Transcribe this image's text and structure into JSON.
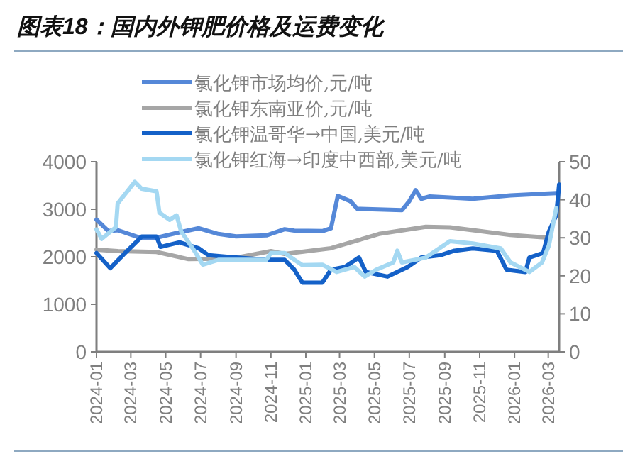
{
  "chart_data": {
    "type": "line",
    "title": "图表18：国内外钾肥价格及运费变化",
    "legend": "top",
    "grid": false,
    "line_style": "solid",
    "xlim": [
      "2024-01-01",
      "2026-03-20"
    ],
    "xticks": [
      "2024-01",
      "2024-03",
      "2024-05",
      "2024-07",
      "2024-09",
      "2024-11",
      "2025-01",
      "2025-03",
      "2025-05",
      "2025-07",
      "2025-09",
      "2025-11",
      "2026-01",
      "2026-03"
    ],
    "ylim": [
      0,
      4000
    ],
    "yticks": [
      0,
      1000,
      2000,
      3000,
      4000
    ],
    "y2lim": [
      0,
      50
    ],
    "y2ticks": [
      0,
      10,
      20,
      30,
      40,
      50
    ],
    "series": [
      {
        "name": "氯化钾市场均价,元/吨",
        "color": "#5588d8",
        "x": [
          "2024-01-01",
          "2024-01-22",
          "2024-02-07",
          "2024-03-20",
          "2024-04-15",
          "2024-05-20",
          "2024-06-28",
          "2024-08-01",
          "2024-09-01",
          "2024-10-24",
          "2024-11-25",
          "2024-12-12",
          "2025-01-30",
          "2025-02-14",
          "2025-02-26",
          "2025-03-20",
          "2025-04-01",
          "2025-06-18",
          "2025-07-01",
          "2025-07-12",
          "2025-07-22",
          "2025-08-06",
          "2025-10-20",
          "2025-12-25",
          "2026-03-15"
        ],
        "values": [
          2780,
          2540,
          2560,
          2390,
          2400,
          2500,
          2600,
          2480,
          2430,
          2450,
          2580,
          2550,
          2540,
          2600,
          3280,
          3170,
          3010,
          2980,
          3170,
          3400,
          3220,
          3270,
          3220,
          3290,
          3340
        ]
      },
      {
        "name": "氯化钾东南亚价,元/吨",
        "color": "#a6a6a6",
        "x": [
          "2024-01-01",
          "2024-02-07",
          "2024-04-15",
          "2024-06-10",
          "2024-08-01",
          "2024-09-10",
          "2024-11-01",
          "2024-11-25",
          "2025-02-14",
          "2025-05-09",
          "2025-07-30",
          "2025-09-10",
          "2025-10-20",
          "2025-12-25",
          "2026-03-02"
        ],
        "values": [
          2150,
          2120,
          2100,
          1950,
          1960,
          2000,
          2120,
          2060,
          2180,
          2480,
          2630,
          2620,
          2560,
          2460,
          2400
        ]
      },
      {
        "name": "氯化钾温哥华→中国,美元/吨",
        "color": "#1461c8",
        "axis": "y2",
        "x": [
          "2024-01-01",
          "2024-01-25",
          "2024-02-20",
          "2024-03-20",
          "2024-04-15",
          "2024-04-22",
          "2024-05-25",
          "2024-06-28",
          "2024-07-15",
          "2024-08-16",
          "2024-10-24",
          "2024-11-25",
          "2024-12-12",
          "2024-12-26",
          "2025-01-30",
          "2025-02-14",
          "2025-03-10",
          "2025-04-04",
          "2025-04-16",
          "2025-05-24",
          "2025-06-28",
          "2025-07-22",
          "2025-08-24",
          "2025-09-18",
          "2025-10-20",
          "2025-12-01",
          "2025-12-18",
          "2026-01-20",
          "2026-01-27",
          "2026-02-20",
          "2026-03-02",
          "2026-03-15",
          "2026-03-20"
        ],
        "values": [
          26,
          22,
          26,
          30.3,
          30.3,
          27.6,
          28.8,
          27.2,
          25.4,
          25,
          24.2,
          24.2,
          21.6,
          18.2,
          18.2,
          21.6,
          22.3,
          24.8,
          21,
          19.8,
          22.3,
          24.8,
          25.4,
          26.6,
          27.2,
          26.6,
          21.6,
          21,
          24.8,
          26,
          31.6,
          35.9,
          44
        ]
      },
      {
        "name": "氯化钾红海→印度中西部,美元/吨",
        "color": "#a4d8f2",
        "axis": "y2",
        "x": [
          "2024-01-01",
          "2024-01-10",
          "2024-02-04",
          "2024-02-07",
          "2024-02-20",
          "2024-03-08",
          "2024-03-20",
          "2024-04-15",
          "2024-04-20",
          "2024-05-08",
          "2024-05-20",
          "2024-05-28",
          "2024-06-20",
          "2024-07-05",
          "2024-08-01",
          "2024-10-24",
          "2024-11-01",
          "2024-11-25",
          "2024-12-12",
          "2024-12-26",
          "2025-01-30",
          "2025-02-24",
          "2025-03-27",
          "2025-04-14",
          "2025-05-04",
          "2025-06-03",
          "2025-06-10",
          "2025-06-18",
          "2025-07-30",
          "2025-09-10",
          "2025-10-20",
          "2025-12-08",
          "2025-12-25",
          "2026-01-27",
          "2026-02-18",
          "2026-03-02",
          "2026-03-15"
        ],
        "values": [
          32.2,
          29.7,
          32.8,
          39,
          41.5,
          44.7,
          42.9,
          42.2,
          36.6,
          34.7,
          35.9,
          31.7,
          26.6,
          22.9,
          24.2,
          24.2,
          26,
          26,
          24.2,
          22.8,
          22.9,
          21,
          22.3,
          19.8,
          21.6,
          23.5,
          26.6,
          23.5,
          24.8,
          29.1,
          28.5,
          27.2,
          23.5,
          21,
          23.5,
          27.9,
          37.8
        ]
      }
    ]
  }
}
